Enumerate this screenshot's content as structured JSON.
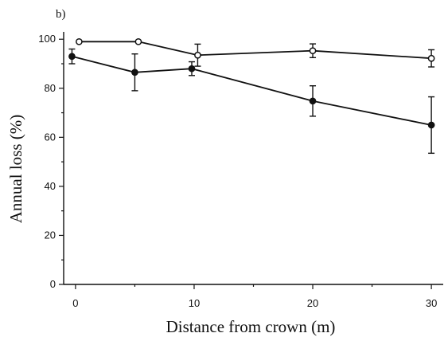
{
  "chart_data": {
    "type": "line",
    "panel_label": "b)",
    "xlabel": "Distance from crown (m)",
    "ylabel": "Annual loss (%)",
    "xlim": [
      -1,
      31
    ],
    "ylim": [
      0,
      103
    ],
    "x_ticks": [
      0,
      10,
      20,
      30
    ],
    "y_ticks": [
      0,
      20,
      40,
      60,
      80,
      100
    ],
    "grid": false,
    "legend": "none",
    "series": [
      {
        "marker": "open-circle",
        "color": "#111111",
        "points": [
          {
            "x": 0.3,
            "y": 99,
            "err": 0
          },
          {
            "x": 5.3,
            "y": 99,
            "err": 0
          },
          {
            "x": 10.3,
            "y": 93.5,
            "err": 4.5
          },
          {
            "x": 20,
            "y": 95.3,
            "err": 2.8
          },
          {
            "x": 30,
            "y": 92.2,
            "err": 3.5
          }
        ]
      },
      {
        "marker": "filled-circle",
        "color": "#111111",
        "points": [
          {
            "x": -0.3,
            "y": 93,
            "err": 3
          },
          {
            "x": 5,
            "y": 86.5,
            "err": 7.5
          },
          {
            "x": 9.8,
            "y": 88,
            "err": 2.8
          },
          {
            "x": 20,
            "y": 74.8,
            "err": 6.2
          },
          {
            "x": 30,
            "y": 65,
            "err": 11.5
          }
        ]
      }
    ]
  }
}
